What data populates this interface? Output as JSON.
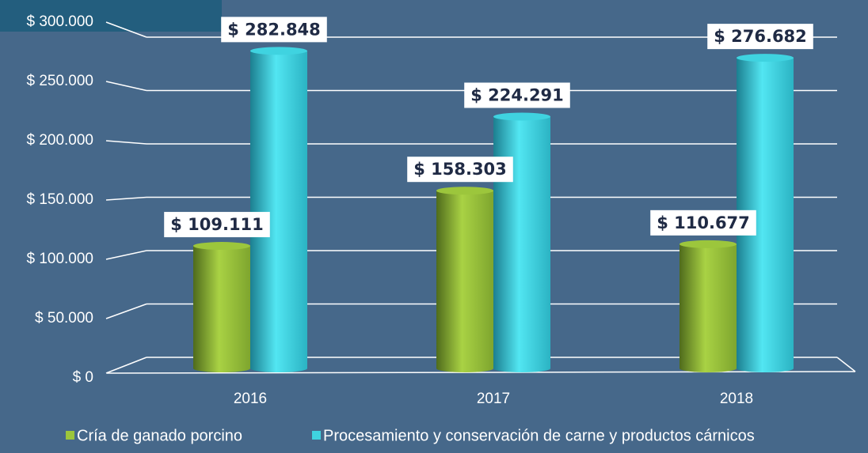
{
  "chart_data": {
    "type": "bar",
    "categories": [
      "2016",
      "2017",
      "2018"
    ],
    "series": [
      {
        "name": "Cría de ganado porcino",
        "color": "#9cc63c",
        "values": [
          109111,
          158303,
          110677
        ],
        "value_labels": [
          "$ 109.111",
          "$ 158.303",
          "$ 110.677"
        ]
      },
      {
        "name": "Procesamiento y conservación de carne y productos cárnicos",
        "color": "#3fd3e0",
        "values": [
          282848,
          224291,
          276682
        ],
        "value_labels": [
          "$ 282.848",
          "$ 224.291",
          "$ 276.682"
        ]
      }
    ],
    "ylim": [
      0,
      300000
    ],
    "yticks": [
      {
        "value": 0,
        "label": "$ 0"
      },
      {
        "value": 50000,
        "label": "$ 50.000"
      },
      {
        "value": 100000,
        "label": "$ 100.000"
      },
      {
        "value": 150000,
        "label": "$ 150.000"
      },
      {
        "value": 200000,
        "label": "$ 200.000"
      },
      {
        "value": 250000,
        "label": "$ 250.000"
      },
      {
        "value": 300000,
        "label": "$ 300.000"
      }
    ],
    "grid": true
  }
}
